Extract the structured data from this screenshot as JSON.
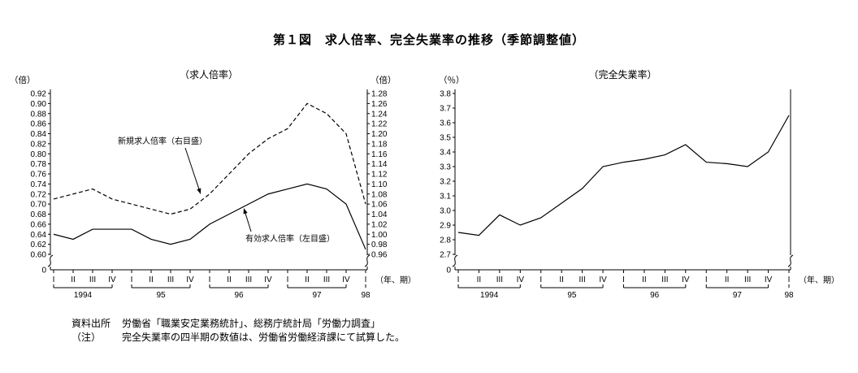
{
  "title": "第１図　求人倍率、完全失業率の推移（季節調整値）",
  "x_axis": {
    "quarter_labels": [
      "I",
      "II",
      "III",
      "IV",
      "I",
      "II",
      "III",
      "IV",
      "I",
      "II",
      "III",
      "IV",
      "I",
      "II",
      "III",
      "IV",
      "I"
    ],
    "year_groups": [
      {
        "label": "1994",
        "from": 0,
        "to": 3
      },
      {
        "label": "95",
        "from": 4,
        "to": 7
      },
      {
        "label": "96",
        "from": 8,
        "to": 11
      },
      {
        "label": "97",
        "from": 12,
        "to": 15
      },
      {
        "label": "98",
        "from": 16,
        "to": 16
      }
    ],
    "unit_label": "（年、期）"
  },
  "chart_data": [
    {
      "type": "line",
      "title": "（求人倍率）",
      "legend_position": "in-plot-annotations",
      "grid": false,
      "axes": {
        "left": {
          "label": "（倍）",
          "min": 0.6,
          "max": 0.92,
          "step": 0.02,
          "decimals": 2,
          "origin_label": "0"
        },
        "right": {
          "label": "（倍）",
          "min": 0.96,
          "max": 1.28,
          "step": 0.02,
          "decimals": 2
        }
      },
      "series": [
        {
          "name": "有効求人倍率（左目盛）",
          "axis": "left",
          "style": "solid",
          "values": [
            0.64,
            0.63,
            0.65,
            0.65,
            0.65,
            0.63,
            0.62,
            0.63,
            0.66,
            0.68,
            0.7,
            0.72,
            0.73,
            0.74,
            0.73,
            0.7,
            0.61
          ]
        },
        {
          "name": "新規求人倍率（右目盛）",
          "axis": "right",
          "style": "dashed",
          "values": [
            1.07,
            1.08,
            1.09,
            1.07,
            1.06,
            1.05,
            1.04,
            1.05,
            1.08,
            1.12,
            1.16,
            1.19,
            1.21,
            1.26,
            1.24,
            1.2,
            1.06
          ]
        }
      ],
      "annotations": [
        {
          "text": "新規求人倍率（右目盛）",
          "series": "新規求人倍率（右目盛）"
        },
        {
          "text": "有効求人倍率（左目盛）",
          "series": "有効求人倍率（左目盛）"
        }
      ]
    },
    {
      "type": "line",
      "title": "（完全失業率）",
      "grid": false,
      "axes": {
        "left": {
          "label": "（％）",
          "min": 2.7,
          "max": 3.8,
          "step": 0.1,
          "decimals": 1,
          "origin_label": "0"
        }
      },
      "series": [
        {
          "name": "完全失業率",
          "axis": "left",
          "style": "solid",
          "values": [
            2.85,
            2.83,
            2.97,
            2.9,
            2.95,
            3.05,
            3.15,
            3.3,
            3.33,
            3.35,
            3.38,
            3.45,
            3.33,
            3.32,
            3.3,
            3.4,
            3.65
          ]
        }
      ],
      "annotations": []
    }
  ],
  "footnotes": [
    {
      "label": "資料出所",
      "text": "労働省「職業安定業務統計」、総務庁統計局「労働力調査」"
    },
    {
      "label": "（注）",
      "text": "完全失業率の四半期の数値は、労働省労働経済課にて試算した。"
    }
  ]
}
